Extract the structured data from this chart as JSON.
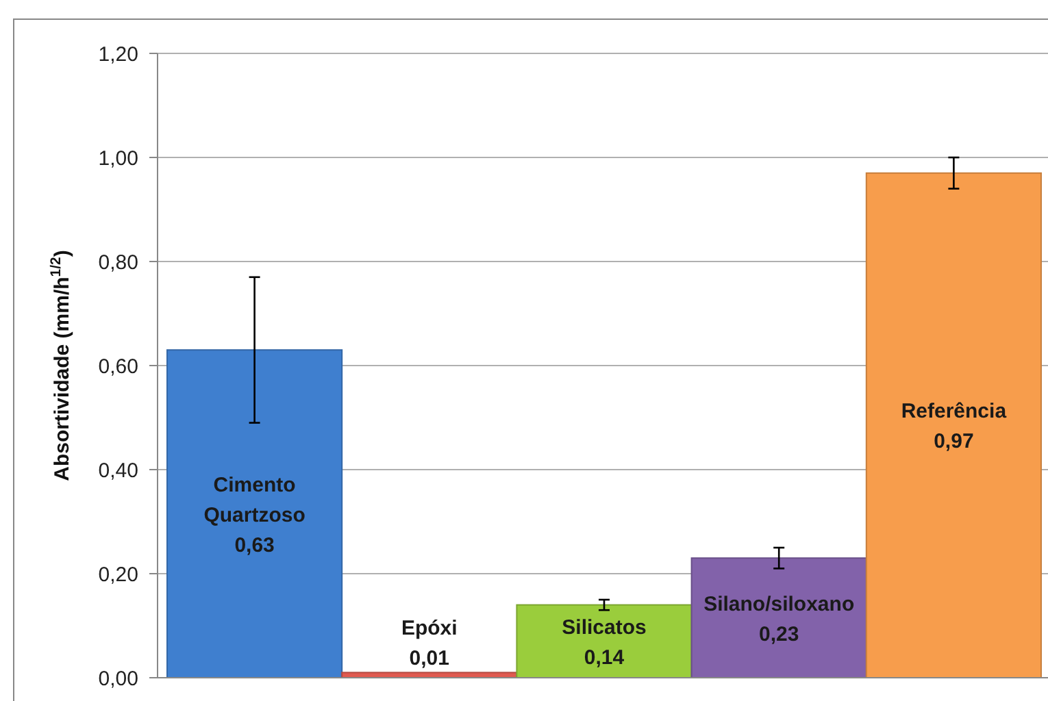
{
  "chart_data": {
    "type": "bar",
    "ylabel": "Absortividade (mm/h$^{1/2}$)",
    "categories": [
      "Cimento Quartzoso",
      "Epóxi",
      "Silicatos",
      "Silano/siloxano",
      "Referência"
    ],
    "values": [
      0.63,
      0.01,
      0.14,
      0.23,
      0.97
    ],
    "errors": [
      0.14,
      null,
      0.01,
      0.02,
      0.03
    ],
    "colors": [
      "#3f7fcf",
      "#e05a50",
      "#9acd3c",
      "#8262aa",
      "#f79d4c"
    ],
    "ylim": [
      0,
      1.2
    ],
    "yticks": [
      {
        "value": 0,
        "label": "0,00"
      },
      {
        "value": 0.2,
        "label": "0,20"
      },
      {
        "value": 0.4,
        "label": "0,40"
      },
      {
        "value": 0.6,
        "label": "0,60"
      },
      {
        "value": 0.8,
        "label": "0,80"
      },
      {
        "value": 1.0,
        "label": "1,00"
      },
      {
        "value": 1.2,
        "label": "1,20"
      }
    ],
    "grid": "y",
    "value_labels": [
      "0,63",
      "0,01",
      "0,14",
      "0,23",
      "0,97"
    ]
  }
}
